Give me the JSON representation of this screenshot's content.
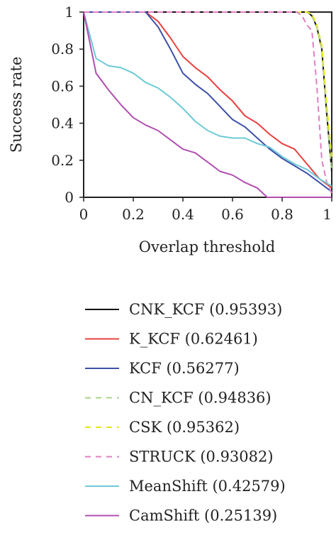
{
  "chart_data": {
    "type": "line",
    "title": "",
    "xlabel": "Overlap threshold",
    "ylabel": "Success rate",
    "xlim": [
      0,
      1
    ],
    "ylim": [
      0,
      1
    ],
    "xticks": [
      "0",
      "0.2",
      "0.4",
      "0.6",
      "0.8",
      "1"
    ],
    "yticks": [
      "0",
      "0.2",
      "0.4",
      "0.6",
      "0.8",
      "1"
    ],
    "legend_position": "bottom",
    "series": [
      {
        "name": "CNK_KCF (0.95393)",
        "color": "#111111",
        "dash": "solid",
        "points": [
          [
            0,
            1
          ],
          [
            0.85,
            1
          ],
          [
            0.9,
            1
          ],
          [
            0.92,
            0.98
          ],
          [
            0.94,
            0.92
          ],
          [
            0.96,
            0.8
          ],
          [
            0.98,
            0.45
          ],
          [
            1,
            0.14
          ]
        ]
      },
      {
        "name": "K_KCF (0.62461)",
        "color": "#e8413f",
        "dash": "solid",
        "points": [
          [
            0,
            1
          ],
          [
            0.25,
            1
          ],
          [
            0.3,
            0.95
          ],
          [
            0.35,
            0.86
          ],
          [
            0.4,
            0.76
          ],
          [
            0.45,
            0.7
          ],
          [
            0.5,
            0.65
          ],
          [
            0.55,
            0.58
          ],
          [
            0.6,
            0.52
          ],
          [
            0.65,
            0.44
          ],
          [
            0.7,
            0.4
          ],
          [
            0.75,
            0.34
          ],
          [
            0.8,
            0.29
          ],
          [
            0.85,
            0.26
          ],
          [
            0.9,
            0.18
          ],
          [
            0.95,
            0.1
          ],
          [
            1,
            0.05
          ]
        ]
      },
      {
        "name": "KCF (0.56277)",
        "color": "#3d50a8",
        "dash": "solid",
        "points": [
          [
            0,
            1
          ],
          [
            0.25,
            1
          ],
          [
            0.3,
            0.92
          ],
          [
            0.35,
            0.8
          ],
          [
            0.4,
            0.67
          ],
          [
            0.45,
            0.61
          ],
          [
            0.5,
            0.56
          ],
          [
            0.55,
            0.49
          ],
          [
            0.6,
            0.42
          ],
          [
            0.65,
            0.38
          ],
          [
            0.7,
            0.32
          ],
          [
            0.75,
            0.26
          ],
          [
            0.8,
            0.21
          ],
          [
            0.85,
            0.17
          ],
          [
            0.9,
            0.13
          ],
          [
            0.95,
            0.08
          ],
          [
            1,
            0.03
          ]
        ]
      },
      {
        "name": "CN_KCF (0.94836)",
        "color": "#a8d38a",
        "dash": "dashed",
        "points": [
          [
            0,
            1
          ],
          [
            0.85,
            1
          ],
          [
            0.9,
            1
          ],
          [
            0.92,
            0.98
          ],
          [
            0.94,
            0.92
          ],
          [
            0.96,
            0.8
          ],
          [
            0.98,
            0.45
          ],
          [
            1,
            0.14
          ]
        ]
      },
      {
        "name": "CSK (0.95362)",
        "color": "#e6e619",
        "dash": "dashed",
        "points": [
          [
            0,
            1
          ],
          [
            0.85,
            1
          ],
          [
            0.9,
            1
          ],
          [
            0.92,
            0.99
          ],
          [
            0.94,
            0.93
          ],
          [
            0.96,
            0.82
          ],
          [
            0.98,
            0.5
          ],
          [
            1,
            0.22
          ]
        ]
      },
      {
        "name": "STRUCK (0.93082)",
        "color": "#e07fc4",
        "dash": "dashed",
        "points": [
          [
            0,
            1
          ],
          [
            0.86,
            1
          ],
          [
            0.88,
            0.98
          ],
          [
            0.9,
            0.93
          ],
          [
            0.92,
            0.9
          ],
          [
            0.94,
            0.6
          ],
          [
            0.96,
            0.2
          ],
          [
            0.98,
            0.08
          ],
          [
            1,
            0.02
          ]
        ]
      },
      {
        "name": "MeanShift (0.42579)",
        "color": "#6ccad6",
        "dash": "solid",
        "points": [
          [
            0,
            1
          ],
          [
            0.05,
            0.75
          ],
          [
            0.1,
            0.71
          ],
          [
            0.15,
            0.7
          ],
          [
            0.2,
            0.67
          ],
          [
            0.25,
            0.62
          ],
          [
            0.3,
            0.59
          ],
          [
            0.35,
            0.54
          ],
          [
            0.4,
            0.48
          ],
          [
            0.45,
            0.41
          ],
          [
            0.5,
            0.36
          ],
          [
            0.55,
            0.33
          ],
          [
            0.6,
            0.32
          ],
          [
            0.65,
            0.32
          ],
          [
            0.7,
            0.29
          ],
          [
            0.75,
            0.27
          ],
          [
            0.8,
            0.22
          ],
          [
            0.85,
            0.18
          ],
          [
            0.9,
            0.15
          ],
          [
            0.95,
            0.1
          ],
          [
            1,
            0.06
          ]
        ]
      },
      {
        "name": "CamShift (0.25139)",
        "color": "#b04fb0",
        "dash": "solid",
        "points": [
          [
            0,
            1
          ],
          [
            0.05,
            0.67
          ],
          [
            0.1,
            0.58
          ],
          [
            0.15,
            0.5
          ],
          [
            0.2,
            0.43
          ],
          [
            0.25,
            0.39
          ],
          [
            0.3,
            0.36
          ],
          [
            0.35,
            0.31
          ],
          [
            0.4,
            0.26
          ],
          [
            0.45,
            0.24
          ],
          [
            0.5,
            0.19
          ],
          [
            0.55,
            0.14
          ],
          [
            0.6,
            0.12
          ],
          [
            0.65,
            0.08
          ],
          [
            0.7,
            0.05
          ],
          [
            0.74,
            0
          ],
          [
            1,
            0
          ]
        ]
      }
    ]
  }
}
